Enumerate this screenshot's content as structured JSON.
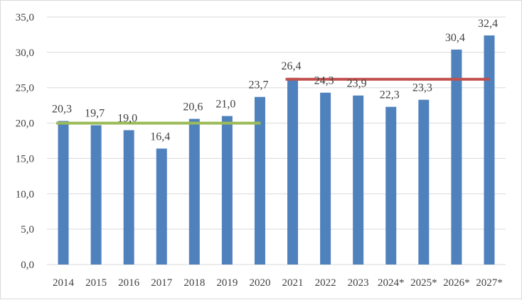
{
  "chart_data": {
    "type": "bar",
    "categories": [
      "2014",
      "2015",
      "2016",
      "2017",
      "2018",
      "2019",
      "2020",
      "2021",
      "2022",
      "2023",
      "2024*",
      "2025*",
      "2026*",
      "2027*"
    ],
    "values": [
      20.3,
      19.7,
      19.0,
      16.4,
      20.6,
      21.0,
      23.7,
      26.4,
      24.3,
      23.9,
      22.3,
      23.3,
      30.4,
      32.4
    ],
    "data_labels": [
      "20,3",
      "19,7",
      "19,0",
      "16,4",
      "20,6",
      "21,0",
      "23,7",
      "26,4",
      "24,3",
      "23,9",
      "22,3",
      "23,3",
      "30,4",
      "32,4"
    ],
    "y_ticks": [
      {
        "value": 0,
        "label": "0,0"
      },
      {
        "value": 5,
        "label": "5,0"
      },
      {
        "value": 10,
        "label": "10,0"
      },
      {
        "value": 15,
        "label": "15,0"
      },
      {
        "value": 20,
        "label": "20,0"
      },
      {
        "value": 25,
        "label": "25,0"
      },
      {
        "value": 30,
        "label": "30,0"
      },
      {
        "value": 35,
        "label": "35,0"
      }
    ],
    "ylim": [
      0,
      35
    ],
    "grid": true,
    "legend": "none",
    "title": "",
    "xlabel": "",
    "ylabel": "",
    "bar_color": "#4f81bd",
    "reference_lines": [
      {
        "from": "2014",
        "to": "2020",
        "value": 20.0,
        "color": "#9bbb59"
      },
      {
        "from": "2021",
        "to": "2027*",
        "value": 26.2,
        "color": "#c0504d"
      }
    ]
  }
}
